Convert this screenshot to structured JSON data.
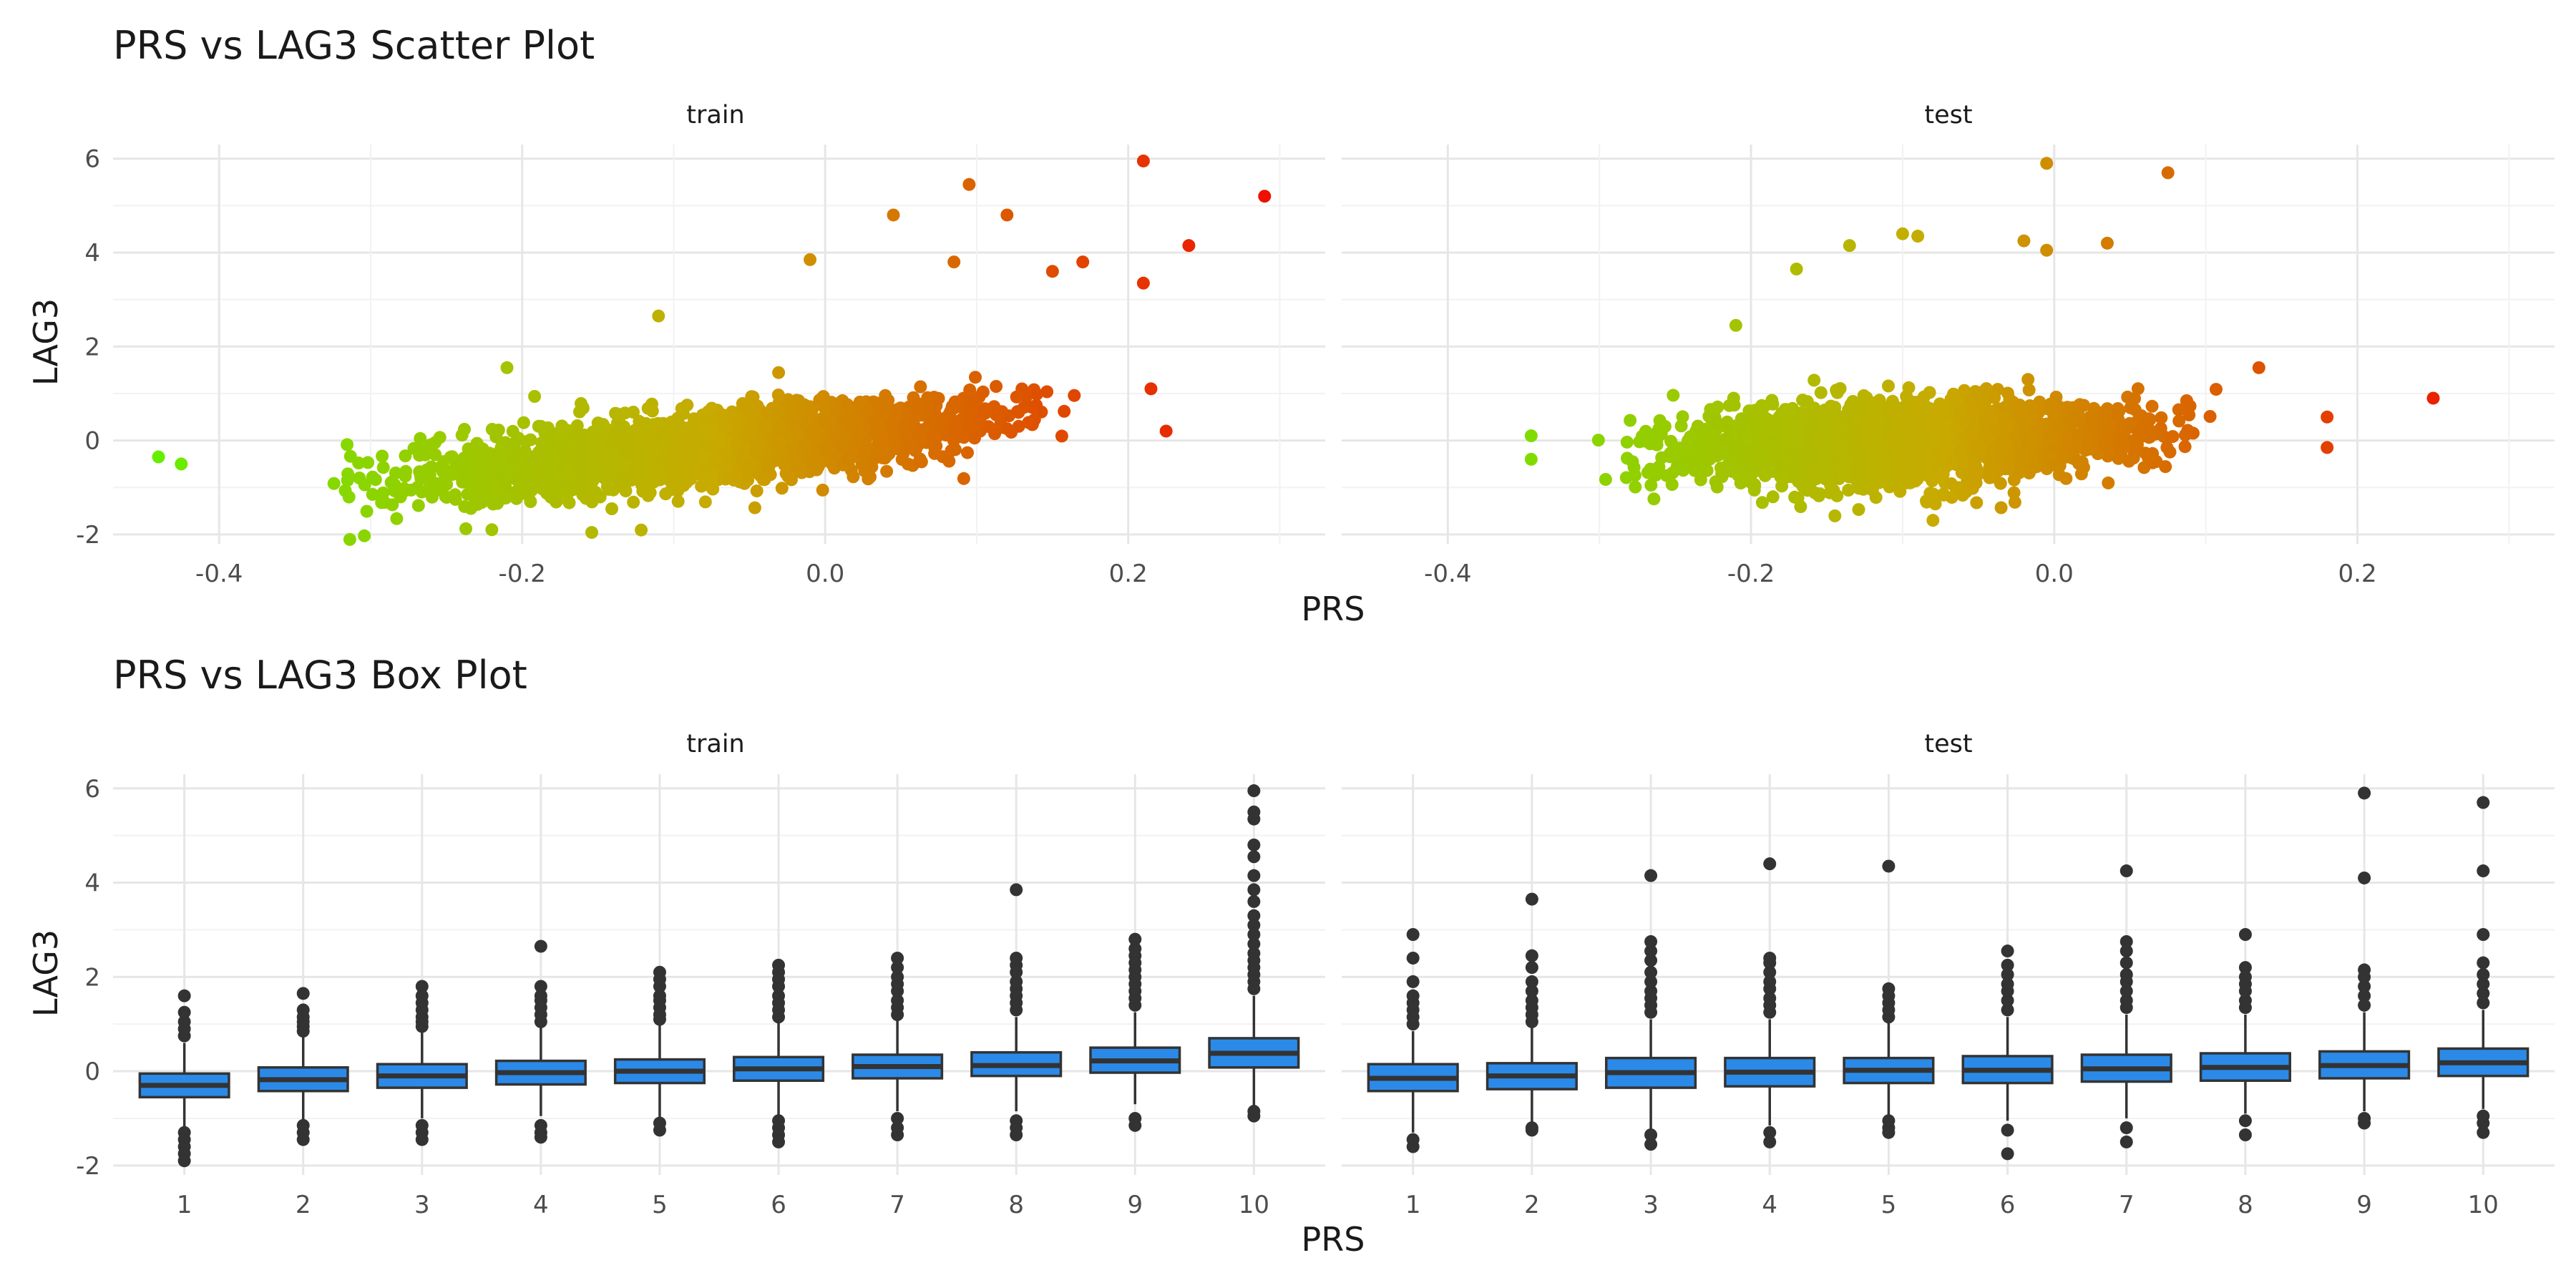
{
  "figure": {
    "scatter_title": "PRS vs LAG3 Scatter Plot",
    "box_title": "PRS vs LAG3 Box Plot",
    "xlabel": "PRS",
    "ylabel": "LAG3",
    "panel_labels": [
      "train",
      "test"
    ]
  },
  "chart_data": [
    {
      "type": "scatter",
      "title": "PRS vs LAG3 Scatter Plot",
      "xlabel": "PRS",
      "ylabel": "LAG3",
      "xlim": [
        -0.47,
        0.33
      ],
      "ylim": [
        -2.2,
        6.3
      ],
      "x_ticks": [
        -0.4,
        -0.2,
        0.0,
        0.2
      ],
      "x_tick_labels": [
        "-0.4",
        "-0.2",
        "0.0",
        "0.2"
      ],
      "y_ticks": [
        -2,
        0,
        2,
        4,
        6
      ],
      "y_tick_labels": [
        "-2",
        "0",
        "2",
        "4",
        "6"
      ],
      "grid": true,
      "color_scale": {
        "low": "#66ee00",
        "mid": "#c8aa00",
        "high": "#ee1100",
        "mapped_to": "PRS"
      },
      "facets": [
        {
          "name": "train",
          "trend": {
            "x_range": [
              -0.36,
              0.2
            ],
            "slope": 3.4,
            "intercept": 0.1,
            "spread": 0.38
          },
          "outliers": [
            {
              "x": -0.44,
              "y": -0.35
            },
            {
              "x": -0.425,
              "y": -0.5
            },
            {
              "x": 0.21,
              "y": 5.95
            },
            {
              "x": 0.29,
              "y": 5.2
            },
            {
              "x": 0.095,
              "y": 5.45
            },
            {
              "x": 0.045,
              "y": 4.8
            },
            {
              "x": 0.12,
              "y": 4.8
            },
            {
              "x": 0.24,
              "y": 4.15
            },
            {
              "x": -0.01,
              "y": 3.85
            },
            {
              "x": 0.085,
              "y": 3.8
            },
            {
              "x": 0.17,
              "y": 3.8
            },
            {
              "x": 0.21,
              "y": 3.35
            },
            {
              "x": 0.15,
              "y": 3.6
            },
            {
              "x": -0.11,
              "y": 2.65
            },
            {
              "x": 0.225,
              "y": 0.2
            },
            {
              "x": 0.215,
              "y": 1.1
            },
            {
              "x": -0.22,
              "y": -1.9
            },
            {
              "x": -0.21,
              "y": 1.55
            }
          ]
        },
        {
          "name": "test",
          "trend": {
            "x_range": [
              -0.32,
              0.13
            ],
            "slope": 1.3,
            "intercept": 0.1,
            "spread": 0.42
          },
          "outliers": [
            {
              "x": -0.005,
              "y": 5.9
            },
            {
              "x": 0.075,
              "y": 5.7
            },
            {
              "x": -0.1,
              "y": 4.4
            },
            {
              "x": -0.09,
              "y": 4.35
            },
            {
              "x": -0.02,
              "y": 4.25
            },
            {
              "x": 0.035,
              "y": 4.2
            },
            {
              "x": -0.135,
              "y": 4.15
            },
            {
              "x": -0.005,
              "y": 4.05
            },
            {
              "x": -0.17,
              "y": 3.65
            },
            {
              "x": 0.25,
              "y": 0.9
            },
            {
              "x": 0.18,
              "y": 0.5
            },
            {
              "x": 0.18,
              "y": -0.15
            },
            {
              "x": 0.135,
              "y": 1.55
            },
            {
              "x": -0.345,
              "y": 0.1
            },
            {
              "x": -0.345,
              "y": -0.4
            },
            {
              "x": -0.08,
              "y": -1.7
            },
            {
              "x": -0.21,
              "y": 2.45
            }
          ]
        }
      ]
    },
    {
      "type": "box",
      "title": "PRS vs LAG3 Box Plot",
      "xlabel": "PRS",
      "ylabel": "LAG3",
      "categories": [
        "1",
        "2",
        "3",
        "4",
        "5",
        "6",
        "7",
        "8",
        "9",
        "10"
      ],
      "ylim": [
        -2.2,
        6.3
      ],
      "y_ticks": [
        -2,
        0,
        2,
        4,
        6
      ],
      "y_tick_labels": [
        "-2",
        "0",
        "2",
        "4",
        "6"
      ],
      "box_fill": "#2b8ae8",
      "box_stroke": "#333333",
      "grid": true,
      "facets": [
        {
          "name": "train",
          "boxes": [
            {
              "q1": -0.55,
              "median": -0.3,
              "q3": -0.05,
              "lower": -1.2,
              "upper": 0.6,
              "outliers": [
                0.75,
                0.9,
                1.05,
                1.25,
                1.6,
                -1.3,
                -1.45,
                -1.6,
                -1.75,
                -1.9
              ]
            },
            {
              "q1": -0.42,
              "median": -0.18,
              "q3": 0.08,
              "lower": -1.05,
              "upper": 0.75,
              "outliers": [
                0.85,
                0.95,
                1.05,
                1.15,
                1.3,
                1.65,
                -1.15,
                -1.3,
                -1.45
              ]
            },
            {
              "q1": -0.35,
              "median": -0.1,
              "q3": 0.15,
              "lower": -1.0,
              "upper": 0.85,
              "outliers": [
                0.95,
                1.05,
                1.15,
                1.3,
                1.45,
                1.6,
                1.8,
                -1.15,
                -1.3,
                -1.45
              ]
            },
            {
              "q1": -0.28,
              "median": -0.03,
              "q3": 0.22,
              "lower": -0.95,
              "upper": 0.95,
              "outliers": [
                1.05,
                1.2,
                1.35,
                1.5,
                1.6,
                1.8,
                2.65,
                -1.15,
                -1.3,
                -1.4
              ]
            },
            {
              "q1": -0.25,
              "median": 0.0,
              "q3": 0.25,
              "lower": -1.0,
              "upper": 1.0,
              "outliers": [
                1.1,
                1.2,
                1.35,
                1.5,
                1.6,
                1.8,
                1.95,
                2.1,
                -1.1,
                -1.25
              ]
            },
            {
              "q1": -0.2,
              "median": 0.05,
              "q3": 0.3,
              "lower": -0.95,
              "upper": 1.05,
              "outliers": [
                1.15,
                1.3,
                1.45,
                1.6,
                1.8,
                1.95,
                2.1,
                2.25,
                -1.05,
                -1.2,
                -1.35,
                -1.5
              ]
            },
            {
              "q1": -0.15,
              "median": 0.1,
              "q3": 0.35,
              "lower": -0.85,
              "upper": 1.1,
              "outliers": [
                1.2,
                1.35,
                1.5,
                1.7,
                1.85,
                2.0,
                2.2,
                2.4,
                -1.0,
                -1.2,
                -1.35
              ]
            },
            {
              "q1": -0.1,
              "median": 0.12,
              "q3": 0.4,
              "lower": -0.85,
              "upper": 1.15,
              "outliers": [
                1.3,
                1.45,
                1.6,
                1.75,
                1.9,
                2.1,
                2.25,
                2.4,
                3.85,
                -1.05,
                -1.2,
                -1.35
              ]
            },
            {
              "q1": -0.03,
              "median": 0.22,
              "q3": 0.5,
              "lower": -0.7,
              "upper": 1.25,
              "outliers": [
                1.4,
                1.55,
                1.7,
                1.85,
                2.0,
                2.15,
                2.3,
                2.45,
                2.6,
                2.8,
                -1.0,
                -1.15
              ]
            },
            {
              "q1": 0.08,
              "median": 0.38,
              "q3": 0.7,
              "lower": -0.75,
              "upper": 1.6,
              "outliers": [
                1.75,
                1.9,
                2.05,
                2.2,
                2.35,
                2.5,
                2.7,
                2.9,
                3.1,
                3.3,
                3.6,
                3.85,
                4.15,
                4.55,
                4.8,
                5.35,
                5.5,
                5.95,
                -0.85,
                -0.95
              ]
            }
          ]
        },
        {
          "name": "test",
          "boxes": [
            {
              "q1": -0.42,
              "median": -0.15,
              "q3": 0.15,
              "lower": -1.3,
              "upper": 0.85,
              "outliers": [
                1.0,
                1.15,
                1.3,
                1.45,
                1.6,
                1.9,
                2.4,
                2.9,
                -1.45,
                -1.6
              ]
            },
            {
              "q1": -0.38,
              "median": -0.1,
              "q3": 0.17,
              "lower": -1.1,
              "upper": 0.95,
              "outliers": [
                1.05,
                1.2,
                1.35,
                1.5,
                1.7,
                1.9,
                2.2,
                2.45,
                3.65,
                -1.2,
                -1.25
              ]
            },
            {
              "q1": -0.35,
              "median": -0.03,
              "q3": 0.28,
              "lower": -1.25,
              "upper": 1.1,
              "outliers": [
                1.25,
                1.4,
                1.55,
                1.7,
                1.9,
                2.1,
                2.35,
                2.55,
                2.75,
                4.15,
                -1.35,
                -1.55
              ]
            },
            {
              "q1": -0.32,
              "median": -0.02,
              "q3": 0.28,
              "lower": -1.15,
              "upper": 1.1,
              "outliers": [
                1.25,
                1.4,
                1.55,
                1.75,
                1.9,
                2.1,
                2.3,
                2.4,
                4.4,
                -1.3,
                -1.5
              ]
            },
            {
              "q1": -0.25,
              "median": 0.02,
              "q3": 0.28,
              "lower": -1.0,
              "upper": 1.05,
              "outliers": [
                1.15,
                1.3,
                1.45,
                1.6,
                1.75,
                4.35,
                -1.05,
                -1.2,
                -1.3
              ]
            },
            {
              "q1": -0.25,
              "median": 0.02,
              "q3": 0.32,
              "lower": -1.05,
              "upper": 1.15,
              "outliers": [
                1.3,
                1.5,
                1.7,
                1.85,
                2.05,
                2.25,
                2.55,
                -1.25,
                -1.75
              ]
            },
            {
              "q1": -0.22,
              "median": 0.05,
              "q3": 0.35,
              "lower": -1.0,
              "upper": 1.2,
              "outliers": [
                1.35,
                1.5,
                1.7,
                1.9,
                2.05,
                2.3,
                2.55,
                2.75,
                4.25,
                -1.2,
                -1.5
              ]
            },
            {
              "q1": -0.2,
              "median": 0.08,
              "q3": 0.38,
              "lower": -0.9,
              "upper": 1.2,
              "outliers": [
                1.35,
                1.5,
                1.7,
                1.85,
                2.0,
                2.2,
                2.9,
                -1.05,
                -1.35
              ]
            },
            {
              "q1": -0.15,
              "median": 0.12,
              "q3": 0.42,
              "lower": -0.85,
              "upper": 1.25,
              "outliers": [
                1.4,
                1.6,
                1.8,
                2.0,
                2.15,
                4.1,
                5.9,
                -1.0,
                -1.1
              ]
            },
            {
              "q1": -0.1,
              "median": 0.18,
              "q3": 0.48,
              "lower": -0.8,
              "upper": 1.3,
              "outliers": [
                1.45,
                1.65,
                1.85,
                2.05,
                2.3,
                2.9,
                4.25,
                5.7,
                -0.95,
                -1.1,
                -1.3
              ]
            }
          ]
        }
      ]
    }
  ]
}
